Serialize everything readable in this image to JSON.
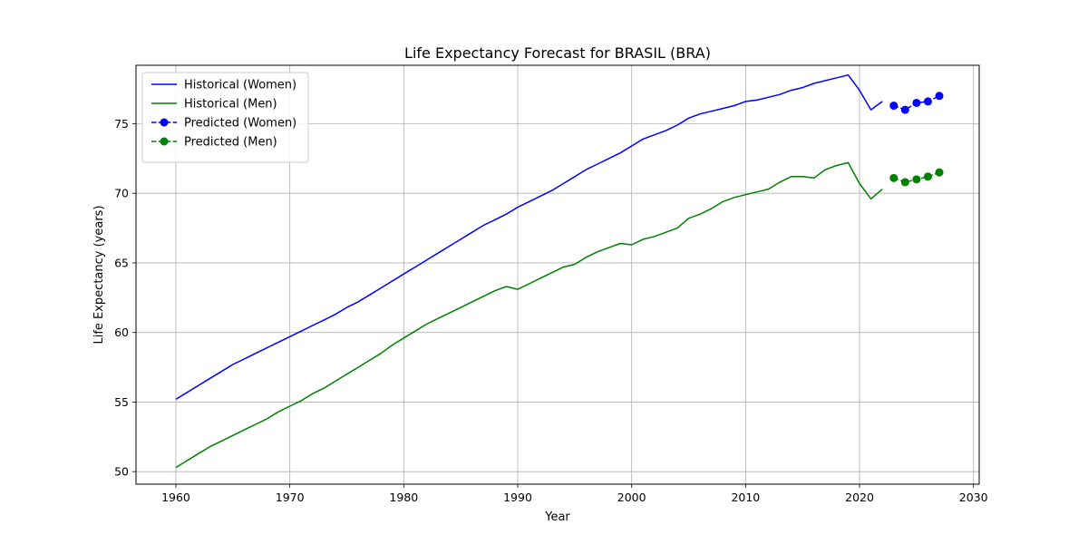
{
  "chart_data": {
    "type": "line",
    "title": "Life Expectancy Forecast for BRASIL (BRA)",
    "xlabel": "Year",
    "ylabel": "Life Expectancy (years)",
    "xlim": [
      1956.5,
      2030.5
    ],
    "ylim": [
      49.1,
      79.2
    ],
    "xticks": [
      1960,
      1970,
      1980,
      1990,
      2000,
      2010,
      2020,
      2030
    ],
    "yticks": [
      50,
      55,
      60,
      65,
      70,
      75
    ],
    "grid": true,
    "legend_position": "top-left",
    "series": [
      {
        "name": "Historical (Women)",
        "color": "#0000ff",
        "style": "solid",
        "x": [
          1960,
          1961,
          1962,
          1963,
          1964,
          1965,
          1966,
          1967,
          1968,
          1969,
          1970,
          1971,
          1972,
          1973,
          1974,
          1975,
          1976,
          1977,
          1978,
          1979,
          1980,
          1981,
          1982,
          1983,
          1984,
          1985,
          1986,
          1987,
          1988,
          1989,
          1990,
          1991,
          1992,
          1993,
          1994,
          1995,
          1996,
          1997,
          1998,
          1999,
          2000,
          2001,
          2002,
          2003,
          2004,
          2005,
          2006,
          2007,
          2008,
          2009,
          2010,
          2011,
          2012,
          2013,
          2014,
          2015,
          2016,
          2017,
          2018,
          2019,
          2020,
          2021,
          2022
        ],
        "y": [
          55.2,
          55.7,
          56.2,
          56.7,
          57.2,
          57.7,
          58.1,
          58.5,
          58.9,
          59.3,
          59.7,
          60.1,
          60.5,
          60.9,
          61.3,
          61.8,
          62.2,
          62.7,
          63.2,
          63.7,
          64.2,
          64.7,
          65.2,
          65.7,
          66.2,
          66.7,
          67.2,
          67.7,
          68.1,
          68.5,
          69.0,
          69.4,
          69.8,
          70.2,
          70.7,
          71.2,
          71.7,
          72.1,
          72.5,
          72.9,
          73.4,
          73.9,
          74.2,
          74.5,
          74.9,
          75.4,
          75.7,
          75.9,
          76.1,
          76.3,
          76.6,
          76.7,
          76.9,
          77.1,
          77.4,
          77.6,
          77.9,
          78.1,
          78.3,
          78.5,
          77.4,
          76.0,
          76.6
        ]
      },
      {
        "name": "Historical (Men)",
        "color": "#008000",
        "style": "solid",
        "x": [
          1960,
          1961,
          1962,
          1963,
          1964,
          1965,
          1966,
          1967,
          1968,
          1969,
          1970,
          1971,
          1972,
          1973,
          1974,
          1975,
          1976,
          1977,
          1978,
          1979,
          1980,
          1981,
          1982,
          1983,
          1984,
          1985,
          1986,
          1987,
          1988,
          1989,
          1990,
          1991,
          1992,
          1993,
          1994,
          1995,
          1996,
          1997,
          1998,
          1999,
          2000,
          2001,
          2002,
          2003,
          2004,
          2005,
          2006,
          2007,
          2008,
          2009,
          2010,
          2011,
          2012,
          2013,
          2014,
          2015,
          2016,
          2017,
          2018,
          2019,
          2020,
          2021,
          2022
        ],
        "y": [
          50.3,
          50.8,
          51.3,
          51.8,
          52.2,
          52.6,
          53.0,
          53.4,
          53.8,
          54.3,
          54.7,
          55.1,
          55.6,
          56.0,
          56.5,
          57.0,
          57.5,
          58.0,
          58.5,
          59.1,
          59.6,
          60.1,
          60.6,
          61.0,
          61.4,
          61.8,
          62.2,
          62.6,
          63.0,
          63.3,
          63.1,
          63.5,
          63.9,
          64.3,
          64.7,
          64.9,
          65.4,
          65.8,
          66.1,
          66.4,
          66.3,
          66.7,
          66.9,
          67.2,
          67.5,
          68.2,
          68.5,
          68.9,
          69.4,
          69.7,
          69.9,
          70.1,
          70.3,
          70.8,
          71.2,
          71.2,
          71.1,
          71.7,
          72.0,
          72.2,
          70.7,
          69.6,
          70.3
        ]
      },
      {
        "name": "Predicted (Women)",
        "color": "#0000ff",
        "style": "dashed-markers",
        "x": [
          2023,
          2024,
          2025,
          2026,
          2027
        ],
        "y": [
          76.3,
          76.0,
          76.5,
          76.6,
          77.0
        ]
      },
      {
        "name": "Predicted (Men)",
        "color": "#008000",
        "style": "dashed-markers",
        "x": [
          2023,
          2024,
          2025,
          2026,
          2027
        ],
        "y": [
          71.1,
          70.8,
          71.0,
          71.2,
          71.5
        ]
      }
    ]
  }
}
